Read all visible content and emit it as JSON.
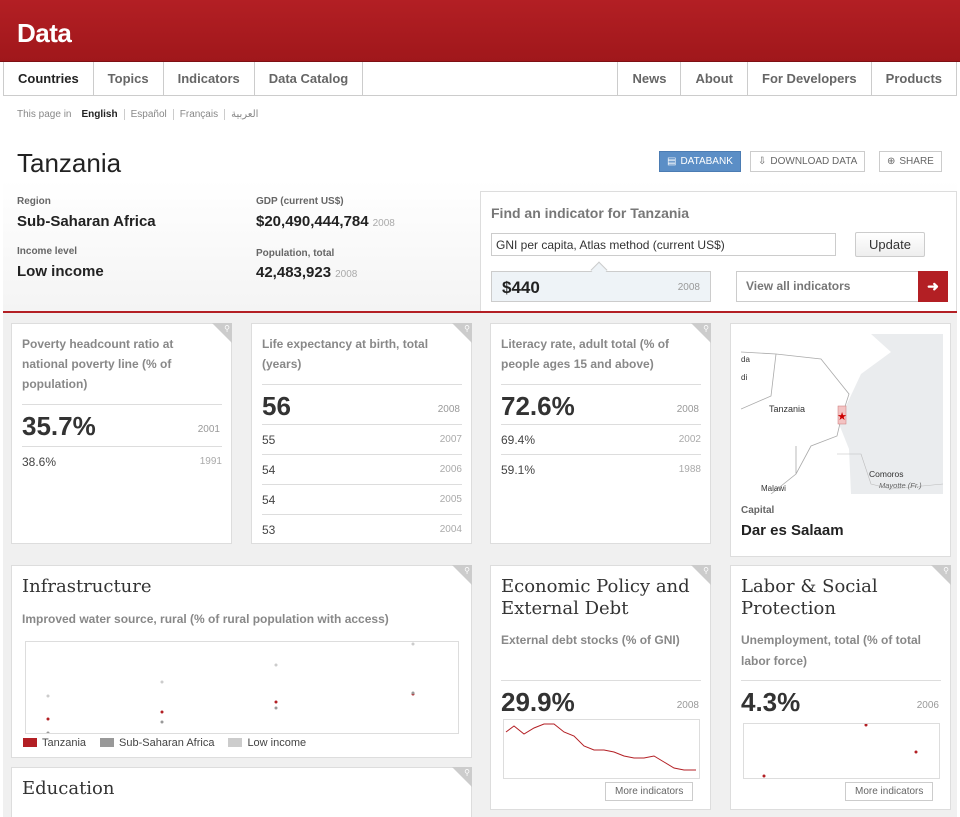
{
  "header": {
    "logo": "Data"
  },
  "nav": {
    "left": [
      "Countries",
      "Topics",
      "Indicators",
      "Data Catalog"
    ],
    "right": [
      "News",
      "About",
      "For Developers",
      "Products"
    ]
  },
  "lang": {
    "prefix": "This page in",
    "options": [
      "English",
      "Español",
      "Français",
      "العربية"
    ]
  },
  "country": "Tanzania",
  "actions": {
    "databank": "DATABANK",
    "download": "DOWNLOAD DATA",
    "share": "SHARE"
  },
  "facts": {
    "region_label": "Region",
    "region": "Sub-Saharan Africa",
    "income_label": "Income level",
    "income": "Low income",
    "gdp_label": "GDP (current US$)",
    "gdp": "$20,490,444,784",
    "gdp_year": "2008",
    "pop_label": "Population, total",
    "pop": "42,483,923",
    "pop_year": "2008"
  },
  "finder": {
    "title": "Find an indicator for Tanzania",
    "input_value": "GNI per capita, Atlas method (current US$)",
    "update": "Update",
    "result_value": "$440",
    "result_year": "2008",
    "view_all": "View all indicators"
  },
  "cards": {
    "poverty": {
      "title": "Poverty headcount ratio at national poverty line (% of population)",
      "value": "35.7%",
      "year": "2001",
      "rows": [
        {
          "v": "38.6%",
          "y": "1991"
        }
      ]
    },
    "life": {
      "title": "Life expectancy at birth, total (years)",
      "value": "56",
      "year": "2008",
      "rows": [
        {
          "v": "55",
          "y": "2007"
        },
        {
          "v": "54",
          "y": "2006"
        },
        {
          "v": "54",
          "y": "2005"
        },
        {
          "v": "53",
          "y": "2004"
        }
      ]
    },
    "literacy": {
      "title": "Literacy rate, adult total (% of people ages 15 and above)",
      "value": "72.6%",
      "year": "2008",
      "rows": [
        {
          "v": "69.4%",
          "y": "2002"
        },
        {
          "v": "59.1%",
          "y": "1988"
        }
      ]
    },
    "map": {
      "labels": {
        "country": "Tanzania",
        "comoros": "Comoros",
        "mayotte": "Mayotte (Fr.)",
        "malawi": "Malawi",
        "edge1": "da",
        "edge2": "di"
      },
      "capital_label": "Capital",
      "capital": "Dar es Salaam"
    },
    "infra": {
      "heading": "Infrastructure",
      "sub": "Improved water source, rural (% of rural population with access)",
      "legend": [
        "Tanzania",
        "Sub-Saharan Africa",
        "Low income"
      ],
      "colors": {
        "tanzania": "#b31f24",
        "ssa": "#999999",
        "low": "#cccccc"
      }
    },
    "econ": {
      "heading": "Economic Policy and External Debt",
      "sub": "External debt stocks (% of GNI)",
      "value": "29.9%",
      "year": "2008",
      "more": "More indicators"
    },
    "labor": {
      "heading": "Labor & Social Protection",
      "sub": "Unemployment, total (% of total labor force)",
      "value": "4.3%",
      "year": "2006",
      "more": "More indicators"
    },
    "edu": {
      "heading": "Education"
    }
  }
}
